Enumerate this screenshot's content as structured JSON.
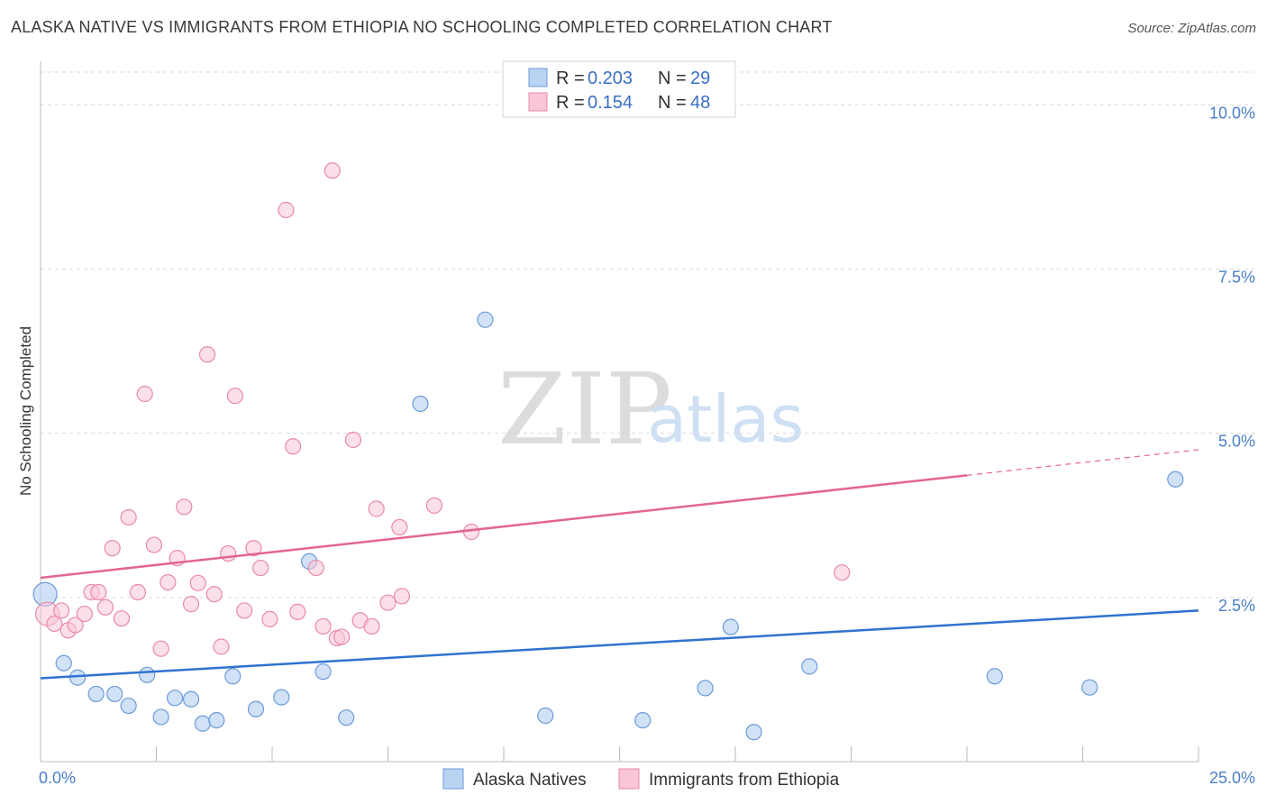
{
  "header": {
    "title": "ALASKA NATIVE VS IMMIGRANTS FROM ETHIOPIA NO SCHOOLING COMPLETED CORRELATION CHART",
    "source": "Source: ZipAtlas.com"
  },
  "watermark": {
    "zip": "ZIP",
    "atlas": "atlas"
  },
  "colors": {
    "blue_fill": "#b9d3f3",
    "blue_stroke": "#6b9bd8",
    "blue_line": "#2f72d0",
    "pink_fill": "#f9c6d5",
    "pink_stroke": "#e98aa7",
    "pink_line": "#e3668f",
    "axis_text": "#4a7fc9",
    "grid": "#d9d9d9"
  },
  "legend": {
    "rows": [
      {
        "r_label": "R =",
        "r_value": "0.203",
        "n_label": "N =",
        "n_value": "29",
        "series": "blue"
      },
      {
        "r_label": "R =",
        "r_value": "0.154",
        "n_label": "N =",
        "n_value": "48",
        "series": "pink"
      }
    ]
  },
  "chart_data": {
    "type": "scatter",
    "title": "ALASKA NATIVE VS IMMIGRANTS FROM ETHIOPIA NO SCHOOLING COMPLETED CORRELATION CHART",
    "xlabel": "",
    "ylabel": "No Schooling Completed",
    "xlim": [
      0,
      25
    ],
    "ylim": [
      0,
      10.5
    ],
    "x_tick_labels": [
      {
        "value": 0,
        "label": "0.0%"
      },
      {
        "value": 25,
        "label": "25.0%"
      }
    ],
    "y_tick_labels": [
      {
        "value": 2.5,
        "label": "2.5%"
      },
      {
        "value": 5.0,
        "label": "5.0%"
      },
      {
        "value": 7.5,
        "label": "7.5%"
      },
      {
        "value": 10.0,
        "label": "10.0%"
      }
    ],
    "x_minor_ticks": [
      2.5,
      5,
      7.5,
      10,
      12.5,
      15,
      17.5,
      20,
      22.5,
      25
    ],
    "grid": true,
    "legend_position": "top-center",
    "series": [
      {
        "name": "Alaska Natives",
        "color": "blue",
        "r": 0.203,
        "n": 29,
        "trend": {
          "x0": 0,
          "y0": 1.27,
          "x1": 25,
          "y1": 2.3,
          "dashed_from": null
        },
        "points": [
          {
            "x": 0.1,
            "y": 2.55,
            "large": true
          },
          {
            "x": 0.5,
            "y": 1.5
          },
          {
            "x": 0.8,
            "y": 1.28
          },
          {
            "x": 1.2,
            "y": 1.03
          },
          {
            "x": 1.6,
            "y": 1.03
          },
          {
            "x": 1.9,
            "y": 0.85
          },
          {
            "x": 2.3,
            "y": 1.32
          },
          {
            "x": 2.6,
            "y": 0.68
          },
          {
            "x": 2.9,
            "y": 0.97
          },
          {
            "x": 3.25,
            "y": 0.95
          },
          {
            "x": 3.5,
            "y": 0.58
          },
          {
            "x": 3.8,
            "y": 0.63
          },
          {
            "x": 4.15,
            "y": 1.3
          },
          {
            "x": 4.65,
            "y": 0.8
          },
          {
            "x": 5.2,
            "y": 0.98
          },
          {
            "x": 5.8,
            "y": 3.05
          },
          {
            "x": 6.1,
            "y": 1.37
          },
          {
            "x": 6.6,
            "y": 0.67
          },
          {
            "x": 8.2,
            "y": 5.45
          },
          {
            "x": 9.6,
            "y": 6.73
          },
          {
            "x": 10.9,
            "y": 0.7
          },
          {
            "x": 13.0,
            "y": 0.63
          },
          {
            "x": 14.35,
            "y": 1.12
          },
          {
            "x": 14.9,
            "y": 2.05
          },
          {
            "x": 15.4,
            "y": 0.45
          },
          {
            "x": 16.6,
            "y": 1.45
          },
          {
            "x": 20.6,
            "y": 1.3
          },
          {
            "x": 22.65,
            "y": 1.13
          },
          {
            "x": 24.5,
            "y": 4.3
          }
        ]
      },
      {
        "name": "Immigrants from Ethiopia",
        "color": "pink",
        "r": 0.154,
        "n": 48,
        "trend": {
          "x0": 0,
          "y0": 2.8,
          "x1": 25,
          "y1": 4.75,
          "dashed_from": 20
        },
        "points": [
          {
            "x": 0.15,
            "y": 2.25,
            "large": true
          },
          {
            "x": 0.3,
            "y": 2.1
          },
          {
            "x": 0.45,
            "y": 2.3
          },
          {
            "x": 0.6,
            "y": 2.0
          },
          {
            "x": 0.75,
            "y": 2.08
          },
          {
            "x": 0.95,
            "y": 2.25
          },
          {
            "x": 1.1,
            "y": 2.58
          },
          {
            "x": 1.25,
            "y": 2.58
          },
          {
            "x": 1.4,
            "y": 2.35
          },
          {
            "x": 1.55,
            "y": 3.25
          },
          {
            "x": 1.75,
            "y": 2.18
          },
          {
            "x": 1.9,
            "y": 3.72
          },
          {
            "x": 2.1,
            "y": 2.58
          },
          {
            "x": 2.25,
            "y": 5.6
          },
          {
            "x": 2.45,
            "y": 3.3
          },
          {
            "x": 2.6,
            "y": 1.72
          },
          {
            "x": 2.75,
            "y": 2.73
          },
          {
            "x": 2.95,
            "y": 3.1
          },
          {
            "x": 3.1,
            "y": 3.88
          },
          {
            "x": 3.25,
            "y": 2.4
          },
          {
            "x": 3.4,
            "y": 2.72
          },
          {
            "x": 3.6,
            "y": 6.2
          },
          {
            "x": 3.75,
            "y": 2.55
          },
          {
            "x": 3.9,
            "y": 1.75
          },
          {
            "x": 4.05,
            "y": 3.17
          },
          {
            "x": 4.2,
            "y": 5.57
          },
          {
            "x": 4.4,
            "y": 2.3
          },
          {
            "x": 4.6,
            "y": 3.25
          },
          {
            "x": 4.75,
            "y": 2.95
          },
          {
            "x": 4.95,
            "y": 2.17
          },
          {
            "x": 5.3,
            "y": 8.4
          },
          {
            "x": 5.45,
            "y": 4.8
          },
          {
            "x": 5.55,
            "y": 2.28
          },
          {
            "x": 5.95,
            "y": 2.95
          },
          {
            "x": 6.1,
            "y": 2.06
          },
          {
            "x": 6.3,
            "y": 9.0
          },
          {
            "x": 6.4,
            "y": 1.88
          },
          {
            "x": 6.5,
            "y": 1.9
          },
          {
            "x": 6.75,
            "y": 4.9
          },
          {
            "x": 6.9,
            "y": 2.15
          },
          {
            "x": 7.15,
            "y": 2.06
          },
          {
            "x": 7.25,
            "y": 3.85
          },
          {
            "x": 7.5,
            "y": 2.42
          },
          {
            "x": 7.75,
            "y": 3.57
          },
          {
            "x": 7.8,
            "y": 2.52
          },
          {
            "x": 8.5,
            "y": 3.9
          },
          {
            "x": 9.3,
            "y": 3.5
          },
          {
            "x": 17.3,
            "y": 2.88
          }
        ]
      }
    ]
  },
  "bottom_legend": {
    "items": [
      {
        "label": "Alaska Natives",
        "series": "blue"
      },
      {
        "label": "Immigrants from Ethiopia",
        "series": "pink"
      }
    ]
  }
}
